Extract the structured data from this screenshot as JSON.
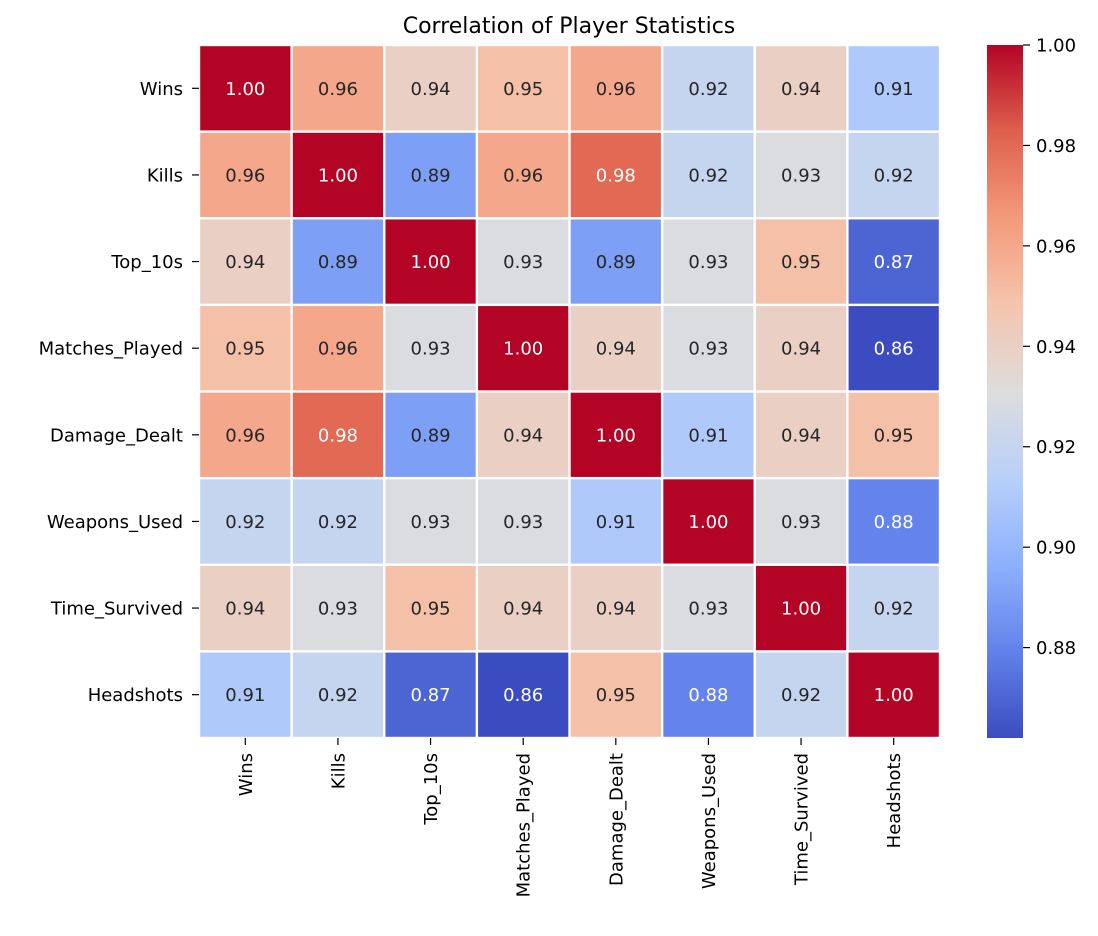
{
  "chart_data": {
    "type": "heatmap",
    "title": "Correlation of Player Statistics",
    "xlabel": "",
    "ylabel": "",
    "rows": [
      "Wins",
      "Kills",
      "Top_10s",
      "Matches_Played",
      "Damage_Dealt",
      "Weapons_Used",
      "Time_Survived",
      "Headshots"
    ],
    "columns": [
      "Wins",
      "Kills",
      "Top_10s",
      "Matches_Played",
      "Damage_Dealt",
      "Weapons_Used",
      "Time_Survived",
      "Headshots"
    ],
    "values": [
      [
        1.0,
        0.96,
        0.94,
        0.95,
        0.96,
        0.92,
        0.94,
        0.91
      ],
      [
        0.96,
        1.0,
        0.89,
        0.96,
        0.98,
        0.92,
        0.93,
        0.92
      ],
      [
        0.94,
        0.89,
        1.0,
        0.93,
        0.89,
        0.93,
        0.95,
        0.87
      ],
      [
        0.95,
        0.96,
        0.93,
        1.0,
        0.94,
        0.93,
        0.94,
        0.86
      ],
      [
        0.96,
        0.98,
        0.89,
        0.94,
        1.0,
        0.91,
        0.94,
        0.95
      ],
      [
        0.92,
        0.92,
        0.93,
        0.93,
        0.91,
        1.0,
        0.93,
        0.88
      ],
      [
        0.94,
        0.93,
        0.95,
        0.94,
        0.94,
        0.93,
        1.0,
        0.92
      ],
      [
        0.91,
        0.92,
        0.87,
        0.86,
        0.95,
        0.88,
        0.92,
        1.0
      ]
    ],
    "value_format": "0.00",
    "colormap": "coolwarm",
    "colorbar": {
      "vmin": 0.862,
      "vmax": 1.0,
      "ticks": [
        0.88,
        0.9,
        0.92,
        0.94,
        0.96,
        0.98,
        1.0
      ],
      "tick_labels": [
        "0.88",
        "0.90",
        "0.92",
        "0.94",
        "0.96",
        "0.98",
        "1.00"
      ]
    },
    "grid_lines_color": "#ffffff",
    "annotation_colors": {
      "dark": "#262626",
      "light": "#ffffff"
    }
  }
}
